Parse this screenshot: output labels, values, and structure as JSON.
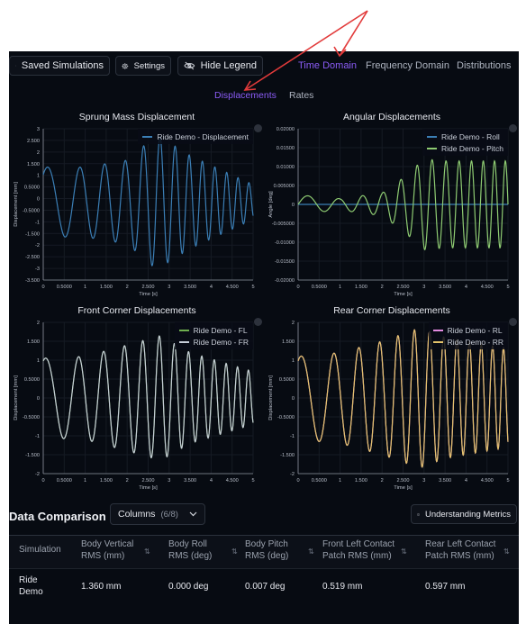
{
  "toolbar": {
    "saved_label": "Saved Simulations",
    "settings_label": "Settings",
    "hide_legend_label": "Hide Legend"
  },
  "tabs": [
    {
      "label": "Time Domain",
      "active": true
    },
    {
      "label": "Frequency Domain",
      "active": false
    },
    {
      "label": "Distributions",
      "active": false
    }
  ],
  "subtabs": [
    {
      "label": "Displacements",
      "active": true
    },
    {
      "label": "Rates",
      "active": false
    }
  ],
  "colors": {
    "accent": "#8b5cf6",
    "annotation_arrow": "#e23b3b",
    "displacement": "#3b7fb6",
    "roll": "#3b7fb6",
    "pitch": "#8ecb72",
    "fl": "#6fae4f",
    "fr": "#c6cdd8",
    "rl": "#e38be0",
    "rr": "#e3c26b"
  },
  "charts": [
    {
      "title": "Sprung Mass Displacement",
      "ylabel": "Displacement [mm]",
      "xlabel": "Time [s]",
      "legend": [
        "Ride Demo - Displacement"
      ],
      "chart_data": {
        "type": "line",
        "ylim": [
          -3.5,
          3
        ],
        "xlim": [
          0,
          5
        ],
        "y_ticks": [
          "3",
          "2.500",
          "2",
          "1.500",
          "1",
          "0.5000",
          "0",
          "-0.5000",
          "-1",
          "-1.500",
          "-2",
          "-2.500",
          "-3",
          "-3.500"
        ],
        "x_ticks": [
          "0",
          "0.5000",
          "1",
          "1.500",
          "2",
          "2.500",
          "3",
          "3.500",
          "4",
          "4.500",
          "5"
        ],
        "series": [
          {
            "name": "Ride Demo - Displacement",
            "color_key": "displacement",
            "model": "chirp",
            "peaks": [
              [
                0,
                1.5
              ],
              [
                1,
                1.5
              ],
              [
                2,
                1.8
              ],
              [
                2.7,
                2.9
              ],
              [
                3.5,
                2.0
              ],
              [
                5,
                0.75
              ]
            ],
            "f0": 1.0,
            "f1": 4.0,
            "phase": 0.9,
            "offset": -0.15
          }
        ]
      }
    },
    {
      "title": "Angular Displacements",
      "ylabel": "Angle [deg]",
      "xlabel": "Time [s]",
      "legend": [
        "Ride Demo - Roll",
        "Ride Demo - Pitch"
      ],
      "chart_data": {
        "type": "line",
        "ylim": [
          -0.02,
          0.02
        ],
        "xlim": [
          0,
          5
        ],
        "y_ticks": [
          "0.02000",
          "0.01500",
          "0.01000",
          "0.005000",
          "0",
          "-0.005000",
          "-0.01000",
          "-0.01500",
          "-0.02000"
        ],
        "x_ticks": [
          "0",
          "0.5000",
          "1",
          "1.500",
          "2",
          "2.500",
          "3",
          "3.500",
          "4",
          "4.500",
          "5"
        ],
        "series": [
          {
            "name": "Ride Demo - Roll",
            "color_key": "roll",
            "model": "zero"
          },
          {
            "name": "Ride Demo - Pitch",
            "color_key": "pitch",
            "model": "chirp",
            "peaks": [
              [
                0,
                0.0025
              ],
              [
                1,
                0.0015
              ],
              [
                2,
                0.003
              ],
              [
                2.5,
                0.007
              ],
              [
                3,
                0.012
              ],
              [
                3.5,
                0.0115
              ],
              [
                5,
                0.0115
              ]
            ],
            "f0": 1.0,
            "f1": 4.0,
            "phase": 0.0,
            "offset": 0.0
          }
        ]
      }
    },
    {
      "title": "Front Corner Displacements",
      "ylabel": "Displacement [mm]",
      "xlabel": "Time [s]",
      "legend": [
        "Ride Demo - FL",
        "Ride Demo - FR"
      ],
      "chart_data": {
        "type": "line",
        "ylim": [
          -2,
          2
        ],
        "xlim": [
          0,
          5
        ],
        "y_ticks": [
          "2",
          "1.500",
          "1",
          "0.5000",
          "0",
          "-0.5000",
          "-1",
          "-1.500",
          "-2"
        ],
        "x_ticks": [
          "0",
          "0.5000",
          "1",
          "1.500",
          "2",
          "2.500",
          "3",
          "3.500",
          "4",
          "4.500",
          "5"
        ],
        "series": [
          {
            "name": "Ride Demo - FL",
            "color_key": "fl",
            "model": "chirp",
            "peaks": [
              [
                0,
                1.05
              ],
              [
                1,
                1.1
              ],
              [
                2,
                1.4
              ],
              [
                2.8,
                1.65
              ],
              [
                3.5,
                1.2
              ],
              [
                5,
                0.7
              ]
            ],
            "f0": 1.0,
            "f1": 4.0,
            "phase": 1.2,
            "offset": 0.0
          },
          {
            "name": "Ride Demo - FR",
            "color_key": "fr",
            "model": "chirp",
            "peaks": [
              [
                0,
                1.05
              ],
              [
                1,
                1.1
              ],
              [
                2,
                1.4
              ],
              [
                2.8,
                1.65
              ],
              [
                3.5,
                1.2
              ],
              [
                5,
                0.7
              ]
            ],
            "f0": 1.0,
            "f1": 4.0,
            "phase": 1.2,
            "offset": 0.0
          }
        ]
      }
    },
    {
      "title": "Rear Corner Displacements",
      "ylabel": "Displacement [mm]",
      "xlabel": "Time [s]",
      "legend": [
        "Ride Demo - RL",
        "Ride Demo - RR"
      ],
      "chart_data": {
        "type": "line",
        "ylim": [
          -2,
          2
        ],
        "xlim": [
          0,
          5
        ],
        "y_ticks": [
          "2",
          "1.500",
          "1",
          "0.5000",
          "0",
          "-0.5000",
          "-1",
          "-1.500",
          "-2"
        ],
        "x_ticks": [
          "0",
          "0.5000",
          "1",
          "1.500",
          "2",
          "2.500",
          "3",
          "3.500",
          "4",
          "4.500",
          "5"
        ],
        "series": [
          {
            "name": "Ride Demo - RL",
            "color_key": "rl",
            "model": "chirp",
            "peaks": [
              [
                0,
                1.1
              ],
              [
                1,
                1.2
              ],
              [
                2,
                1.5
              ],
              [
                2.9,
                1.85
              ],
              [
                3.5,
                1.6
              ],
              [
                5,
                1.3
              ]
            ],
            "f0": 1.0,
            "f1": 4.0,
            "phase": 1.1,
            "offset": 0.0
          },
          {
            "name": "Ride Demo - RR",
            "color_key": "rr",
            "model": "chirp",
            "peaks": [
              [
                0,
                1.1
              ],
              [
                1,
                1.2
              ],
              [
                2,
                1.5
              ],
              [
                2.9,
                1.85
              ],
              [
                3.5,
                1.6
              ],
              [
                5,
                1.3
              ]
            ],
            "f0": 1.0,
            "f1": 4.0,
            "phase": 1.1,
            "offset": 0.0
          }
        ]
      }
    }
  ],
  "comparison": {
    "title": "Data Comparison",
    "columns_label": "Columns",
    "columns_count": "(6/8)",
    "metrics_label": "Understanding Metrics",
    "headers": [
      [
        "Simulation"
      ],
      [
        "Body Vertical",
        "RMS (mm)"
      ],
      [
        "Body Roll",
        "RMS (deg)"
      ],
      [
        "Body Pitch",
        "RMS (deg)"
      ],
      [
        "Front Left Contact",
        "Patch RMS (mm)"
      ],
      [
        "Rear Left Contact",
        "Patch RMS (mm)"
      ]
    ],
    "rows": [
      {
        "cells": [
          [
            "Ride",
            "Demo"
          ],
          [
            "1.360 mm"
          ],
          [
            "0.000 deg"
          ],
          [
            "0.007 deg"
          ],
          [
            "0.519 mm"
          ],
          [
            "0.597 mm"
          ]
        ]
      }
    ]
  }
}
